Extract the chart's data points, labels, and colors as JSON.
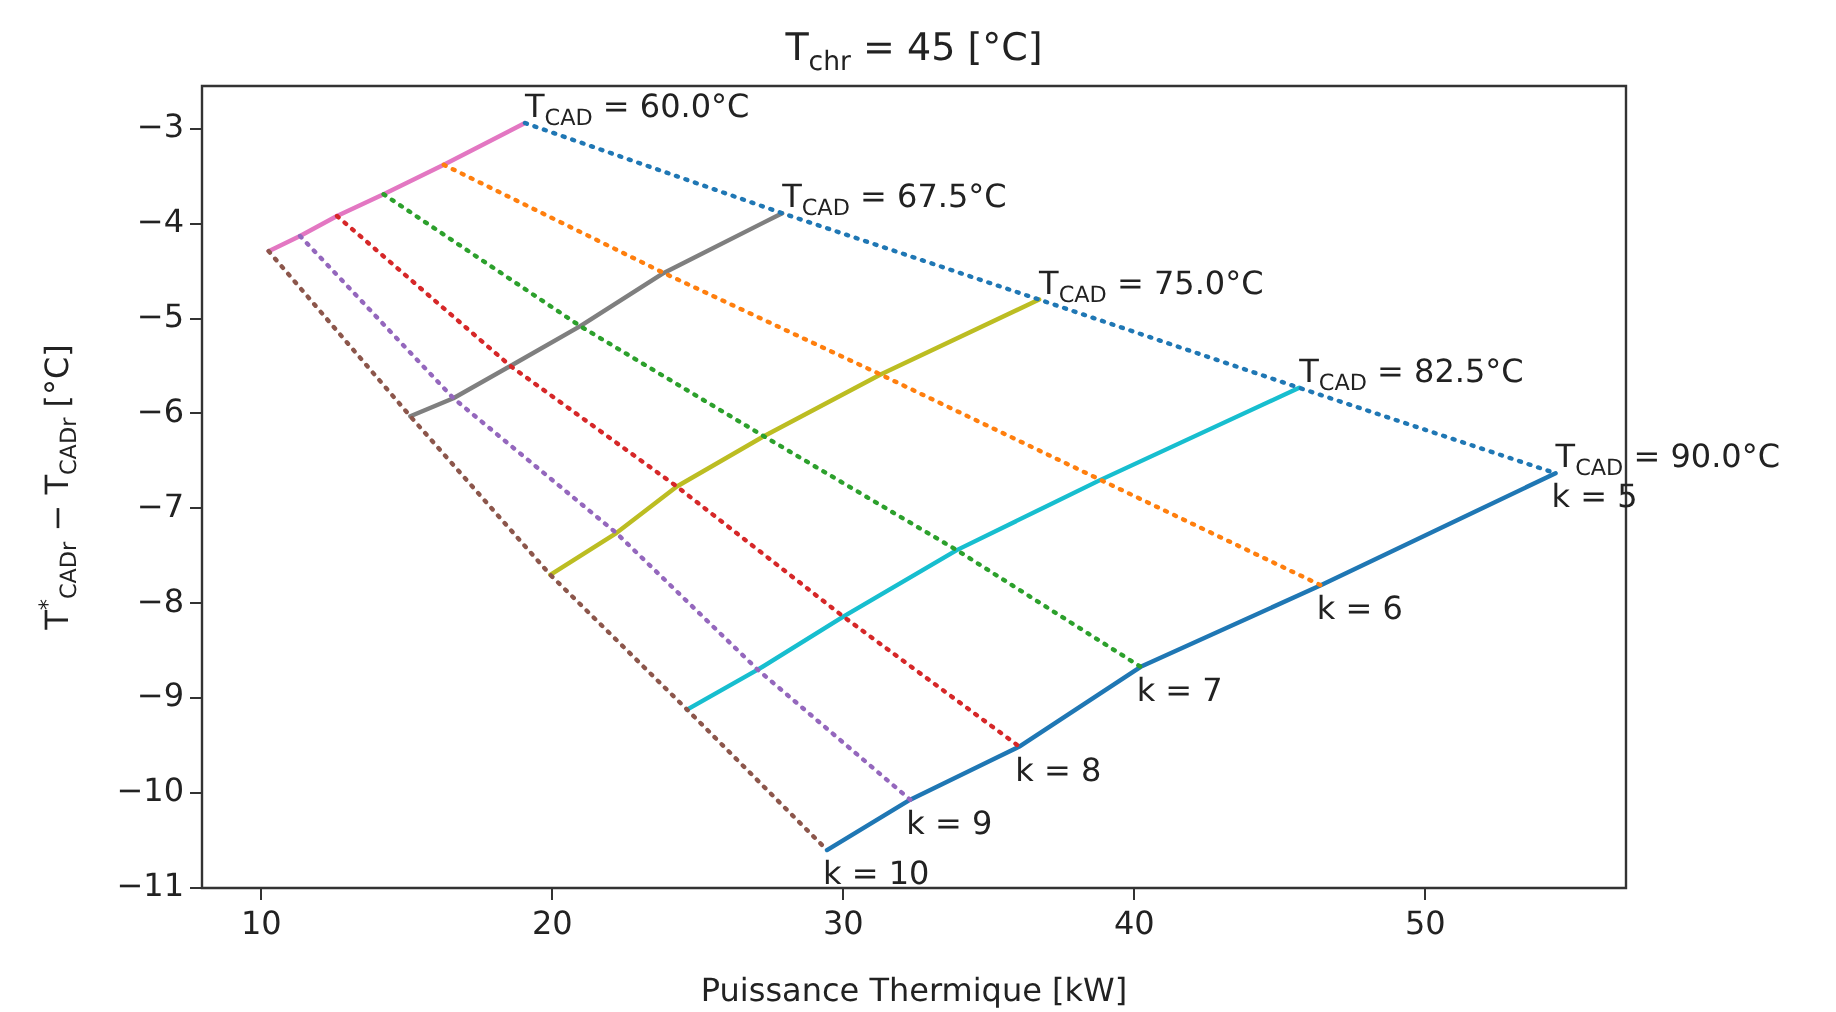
{
  "chart_data": {
    "type": "line",
    "title": "T$_{chr}$ = 45 [°C]",
    "xlabel": "Puissance Thermique [kW]",
    "ylabel": "T$^{*}$$_{CADr}$ − T$_{CADr}$ [°C]",
    "xlim": [
      7.96,
      56.9
    ],
    "ylim": [
      -11,
      -2.55
    ],
    "xticks": [
      10,
      20,
      30,
      40,
      50
    ],
    "yticks": [
      -3,
      -4,
      -5,
      -6,
      -7,
      -8,
      -9,
      -10,
      -11
    ],
    "grid": false,
    "legend": false,
    "marker": "none",
    "series": [
      {
        "color": "#1f77b4",
        "line_style": "dotted",
        "x": [
          19.06,
          27.9,
          36.73,
          45.67,
          54.48
        ],
        "values": [
          -2.94,
          -3.89,
          -4.8,
          -5.73,
          -6.63
        ]
      },
      {
        "color": "#ff7f0e",
        "line_style": "dotted",
        "x": [
          16.27,
          23.83,
          31.28,
          38.84,
          46.41
        ],
        "values": [
          -3.38,
          -4.52,
          -5.59,
          -6.7,
          -7.81
        ]
      },
      {
        "color": "#2ca02c",
        "line_style": "dotted",
        "x": [
          14.2,
          20.96,
          27.27,
          33.9,
          40.22
        ],
        "values": [
          -3.69,
          -5.08,
          -6.24,
          -7.44,
          -8.67
        ]
      },
      {
        "color": "#d62728",
        "line_style": "dotted",
        "x": [
          12.6,
          18.56,
          24.28,
          30.0,
          36.05
        ],
        "values": [
          -3.92,
          -5.5,
          -6.77,
          -8.14,
          -9.51
        ]
      },
      {
        "color": "#9467bd",
        "line_style": "dotted",
        "x": [
          11.33,
          16.6,
          22.2,
          27.06,
          32.3
        ],
        "values": [
          -4.13,
          -5.84,
          -7.26,
          -8.7,
          -10.07
        ]
      },
      {
        "color": "#8c564b",
        "line_style": "dotted",
        "x": [
          10.25,
          15.12,
          19.93,
          24.63,
          29.44
        ],
        "values": [
          -4.29,
          -6.03,
          -7.7,
          -9.12,
          -10.6
        ]
      },
      {
        "color": "#e377c2",
        "line_style": "solid",
        "x": [
          10.25,
          11.33,
          12.6,
          14.2,
          16.27,
          19.06
        ],
        "values": [
          -4.29,
          -4.13,
          -3.92,
          -3.69,
          -3.38,
          -2.94
        ]
      },
      {
        "color": "#7f7f7f",
        "line_style": "solid",
        "x": [
          15.12,
          16.6,
          18.56,
          20.96,
          23.83,
          27.9
        ],
        "values": [
          -6.03,
          -5.84,
          -5.5,
          -5.08,
          -4.52,
          -3.89
        ]
      },
      {
        "color": "#bcbd22",
        "line_style": "solid",
        "x": [
          19.93,
          22.2,
          24.28,
          27.27,
          31.28,
          36.73
        ],
        "values": [
          -7.7,
          -7.26,
          -6.77,
          -6.24,
          -5.59,
          -4.8
        ]
      },
      {
        "color": "#17becf",
        "line_style": "solid",
        "x": [
          24.63,
          27.06,
          30.0,
          33.9,
          38.84,
          45.67
        ],
        "values": [
          -9.12,
          -8.7,
          -8.14,
          -7.44,
          -6.7,
          -5.73
        ]
      },
      {
        "color": "#1f77b4",
        "line_style": "solid",
        "x": [
          29.44,
          32.3,
          36.05,
          40.22,
          46.41,
          54.48
        ],
        "values": [
          -10.6,
          -10.07,
          -9.51,
          -8.67,
          -7.81,
          -6.63
        ]
      }
    ],
    "annotations": [
      {
        "text": "T$_{CAD}$ = 60.0°C",
        "x": 19.06,
        "y": -2.94
      },
      {
        "text": "T$_{CAD}$ = 67.5°C",
        "x": 27.9,
        "y": -3.89
      },
      {
        "text": "T$_{CAD}$ = 75.0°C",
        "x": 36.73,
        "y": -4.8
      },
      {
        "text": "T$_{CAD}$ = 82.5°C",
        "x": 45.67,
        "y": -5.73
      },
      {
        "text": "T$_{CAD}$ = 90.0°C",
        "x": 54.48,
        "y": -6.63
      },
      {
        "text": "k = 5",
        "x": 54.48,
        "y": -6.63
      },
      {
        "text": "k = 6",
        "x": 46.41,
        "y": -7.81
      },
      {
        "text": "k = 7",
        "x": 40.22,
        "y": -8.67
      },
      {
        "text": "k = 8",
        "x": 36.05,
        "y": -9.51
      },
      {
        "text": "k = 9",
        "x": 32.3,
        "y": -10.07
      },
      {
        "text": "k = 10",
        "x": 29.44,
        "y": -10.6
      }
    ]
  }
}
